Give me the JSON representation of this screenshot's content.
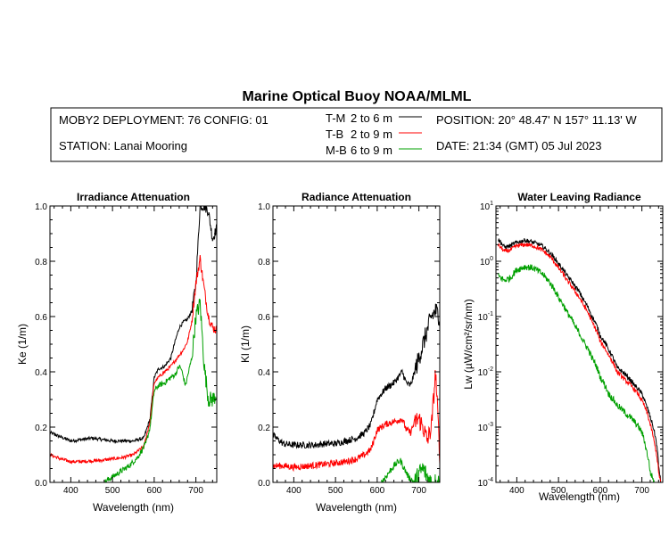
{
  "figure": {
    "title": "Marine Optical Buoy NOAA/MLML",
    "deployment": "MOBY2 DEPLOYMENT: 76 CONFIG: 01",
    "station": "STATION: Lanai Mooring",
    "position": "POSITION: 20° 48.47' N   157° 11.13' W",
    "date": "DATE: 21:34 (GMT) 05 Jul 2023",
    "legend": [
      {
        "code": "T-M",
        "range": "2 to 6  m",
        "color": "#000000"
      },
      {
        "code": "T-B",
        "range": "2 to 9  m",
        "color": "#ff0000"
      },
      {
        "code": "M-B",
        "range": "6 to 9  m",
        "color": "#00a000"
      }
    ]
  },
  "chart_data": [
    {
      "type": "line",
      "title": "Irradiance Attenuation",
      "xlabel": "Wavelength (nm)",
      "ylabel": "Ke  (1/m)",
      "xlim": [
        350,
        750
      ],
      "ylim": [
        0,
        1.0
      ],
      "xticks": [
        "400",
        "500",
        "600",
        "700"
      ],
      "yticks": [
        "0.0",
        "0.2",
        "0.4",
        "0.6",
        "0.8",
        "1.0"
      ],
      "noise": [
        0.006,
        0.006,
        0.01
      ],
      "series": [
        {
          "name": "T-M",
          "color": "#000000",
          "x": [
            350,
            375,
            400,
            425,
            450,
            475,
            500,
            525,
            550,
            575,
            590,
            600,
            610,
            625,
            640,
            650,
            660,
            670,
            680,
            690,
            700,
            710,
            720,
            730,
            740,
            750
          ],
          "y": [
            0.18,
            0.165,
            0.15,
            0.155,
            0.16,
            0.155,
            0.15,
            0.15,
            0.15,
            0.16,
            0.23,
            0.38,
            0.41,
            0.42,
            0.45,
            0.51,
            0.56,
            0.58,
            0.59,
            0.62,
            0.72,
            1.0,
            1.0,
            0.98,
            0.88,
            0.92
          ]
        },
        {
          "name": "T-B",
          "color": "#ff0000",
          "x": [
            350,
            375,
            400,
            425,
            450,
            475,
            500,
            525,
            550,
            575,
            590,
            600,
            610,
            625,
            640,
            650,
            660,
            670,
            680,
            690,
            700,
            710,
            720,
            730,
            740,
            750
          ],
          "y": [
            0.1,
            0.085,
            0.075,
            0.075,
            0.078,
            0.08,
            0.085,
            0.09,
            0.1,
            0.13,
            0.22,
            0.36,
            0.38,
            0.4,
            0.42,
            0.44,
            0.46,
            0.48,
            0.51,
            0.58,
            0.72,
            0.81,
            0.7,
            0.6,
            0.56,
            0.55
          ]
        },
        {
          "name": "M-B",
          "color": "#00a000",
          "x": [
            480,
            500,
            520,
            540,
            560,
            580,
            590,
            600,
            610,
            625,
            640,
            650,
            660,
            665,
            675,
            690,
            700,
            710,
            720,
            730,
            740,
            750
          ],
          "y": [
            0.0,
            0.02,
            0.04,
            0.06,
            0.09,
            0.14,
            0.2,
            0.33,
            0.35,
            0.36,
            0.38,
            0.39,
            0.42,
            0.41,
            0.35,
            0.45,
            0.6,
            0.65,
            0.42,
            0.3,
            0.3,
            0.32
          ]
        }
      ]
    },
    {
      "type": "line",
      "title": "Radiance Attenuation",
      "xlabel": "Wavelength (nm)",
      "ylabel": "Kl  (1/m)",
      "xlim": [
        350,
        750
      ],
      "ylim": [
        0,
        1.0
      ],
      "xticks": [
        "400",
        "500",
        "600",
        "700"
      ],
      "yticks": [
        "0.0",
        "0.2",
        "0.4",
        "0.6",
        "0.8",
        "1.0"
      ],
      "noise": [
        0.012,
        0.012,
        0.012
      ],
      "series": [
        {
          "name": "T-M",
          "color": "#000000",
          "x": [
            350,
            375,
            400,
            425,
            450,
            475,
            500,
            525,
            550,
            570,
            585,
            600,
            620,
            640,
            660,
            670,
            680,
            690,
            700,
            710,
            720,
            730,
            740,
            750
          ],
          "y": [
            0.17,
            0.14,
            0.135,
            0.135,
            0.135,
            0.14,
            0.14,
            0.15,
            0.16,
            0.18,
            0.21,
            0.3,
            0.34,
            0.36,
            0.4,
            0.36,
            0.35,
            0.4,
            0.45,
            0.5,
            0.55,
            0.6,
            0.62,
            0.6
          ]
        },
        {
          "name": "T-B",
          "color": "#ff0000",
          "x": [
            350,
            375,
            400,
            425,
            450,
            475,
            500,
            525,
            550,
            570,
            585,
            600,
            620,
            640,
            660,
            670,
            680,
            690,
            700,
            710,
            720,
            730,
            740,
            750
          ],
          "y": [
            0.06,
            0.06,
            0.055,
            0.058,
            0.062,
            0.066,
            0.07,
            0.075,
            0.085,
            0.1,
            0.12,
            0.19,
            0.21,
            0.22,
            0.23,
            0.19,
            0.18,
            0.22,
            0.23,
            0.2,
            0.15,
            0.2,
            0.4,
            0.1
          ]
        },
        {
          "name": "M-B",
          "color": "#00a000",
          "x": [
            610,
            625,
            640,
            655,
            665,
            675,
            690,
            700,
            710,
            720,
            730,
            740,
            750
          ],
          "y": [
            0.0,
            0.03,
            0.06,
            0.08,
            0.05,
            0.02,
            0.0,
            0.03,
            0.05,
            0.02,
            0.0,
            0.0,
            0.0
          ]
        }
      ]
    },
    {
      "type": "line",
      "title": "Water Leaving Radiance",
      "xlabel": "Wavelength (nm)",
      "ylabel": "Lw  (µW/cm²/sr/nm)",
      "yscale": "log",
      "xlim": [
        350,
        750
      ],
      "ylim": [
        0.0001,
        10
      ],
      "xticks": [
        "400",
        "500",
        "600",
        "700"
      ],
      "ytick_exponents": [
        "1",
        "0",
        "-1",
        "-2",
        "-3",
        "-4"
      ],
      "noise": [
        0.04,
        0.04,
        0.06
      ],
      "series": [
        {
          "name": "T-M",
          "color": "#000000",
          "x": [
            355,
            370,
            385,
            400,
            420,
            440,
            460,
            480,
            500,
            520,
            540,
            560,
            580,
            600,
            620,
            640,
            660,
            680,
            700,
            710,
            720,
            730,
            740,
            745
          ],
          "y": [
            2.5,
            1.8,
            1.9,
            2.2,
            2.4,
            2.2,
            1.9,
            1.4,
            0.9,
            0.55,
            0.35,
            0.2,
            0.1,
            0.045,
            0.025,
            0.012,
            0.009,
            0.006,
            0.004,
            0.0025,
            0.0015,
            0.0008,
            0.0002,
            0.0001
          ]
        },
        {
          "name": "T-B",
          "color": "#ff0000",
          "x": [
            355,
            370,
            385,
            400,
            420,
            440,
            460,
            480,
            500,
            520,
            540,
            560,
            580,
            600,
            620,
            640,
            660,
            680,
            700,
            710,
            720,
            730,
            740,
            745
          ],
          "y": [
            2.0,
            1.5,
            1.6,
            1.9,
            2.0,
            1.9,
            1.6,
            1.2,
            0.75,
            0.45,
            0.28,
            0.16,
            0.08,
            0.035,
            0.02,
            0.01,
            0.007,
            0.005,
            0.003,
            0.002,
            0.0011,
            0.0005,
            0.00015,
            0.0001
          ]
        },
        {
          "name": "M-B",
          "color": "#00a000",
          "x": [
            355,
            370,
            385,
            400,
            420,
            440,
            460,
            480,
            500,
            520,
            540,
            560,
            580,
            600,
            620,
            640,
            660,
            680,
            700,
            710,
            720,
            730
          ],
          "y": [
            0.55,
            0.45,
            0.5,
            0.7,
            0.8,
            0.75,
            0.6,
            0.4,
            0.22,
            0.12,
            0.065,
            0.035,
            0.018,
            0.008,
            0.004,
            0.0025,
            0.0018,
            0.0013,
            0.0008,
            0.0004,
            0.00015,
            0.0001
          ]
        }
      ]
    }
  ]
}
